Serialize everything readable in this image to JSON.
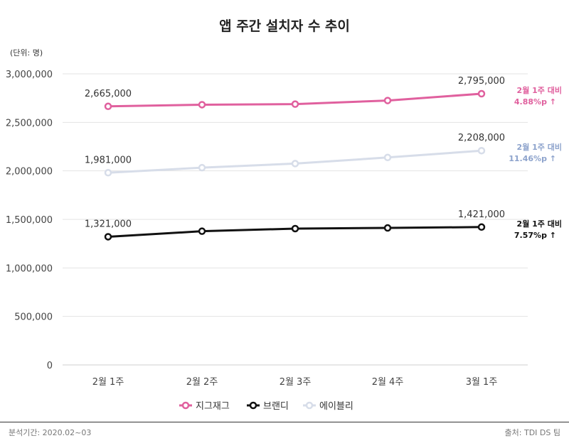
{
  "title": "앱 주간 설치자 수 추이",
  "unit_label": "(단위: 명)",
  "footer": {
    "period": "분석기간: 2020.02~03",
    "source": "출처: TDI DS 팀"
  },
  "colors": {
    "zigzag": "#e0609e",
    "brandi": "#111111",
    "ably": "#d7dde9",
    "ably_note": "#8da3cc",
    "grid": "#e3e3e3"
  },
  "chart_data": {
    "type": "line",
    "title": "앱 주간 설치자 수 추이",
    "xlabel": "",
    "ylabel": "",
    "categories": [
      "2월 1주",
      "2월 2주",
      "2월 3주",
      "2월 4주",
      "3월 1주"
    ],
    "ylim": [
      0,
      3000000
    ],
    "yticks": [
      0,
      500000,
      1000000,
      1500000,
      2000000,
      2500000,
      3000000
    ],
    "ytick_labels": [
      "0",
      "500,000",
      "1,000,000",
      "1,500,000",
      "2,000,000",
      "2,500,000",
      "3,000,000"
    ],
    "grid": true,
    "legend_position": "bottom",
    "series": [
      {
        "key": "zigzag",
        "name": "지그재그",
        "color": "#e0609e",
        "values": [
          2665000,
          2682000,
          2688000,
          2725000,
          2795000
        ],
        "first_label": "2,665,000",
        "last_label": "2,795,000",
        "note_line1": "2월 1주 대비",
        "note_line2": "4.88%p ↑"
      },
      {
        "key": "ably",
        "name": "에이블리",
        "color": "#d7dde9",
        "values": [
          1981000,
          2033000,
          2075000,
          2138000,
          2208000
        ],
        "first_label": "1,981,000",
        "last_label": "2,208,000",
        "note_line1": "2월 1주 대비",
        "note_line2": "11.46%p ↑"
      },
      {
        "key": "brandi",
        "name": "브랜디",
        "color": "#111111",
        "values": [
          1321000,
          1378000,
          1405000,
          1412000,
          1421000
        ],
        "first_label": "1,321,000",
        "last_label": "1,421,000",
        "note_line1": "2월 1주 대비",
        "note_line2": "7.57%p ↑"
      }
    ]
  }
}
